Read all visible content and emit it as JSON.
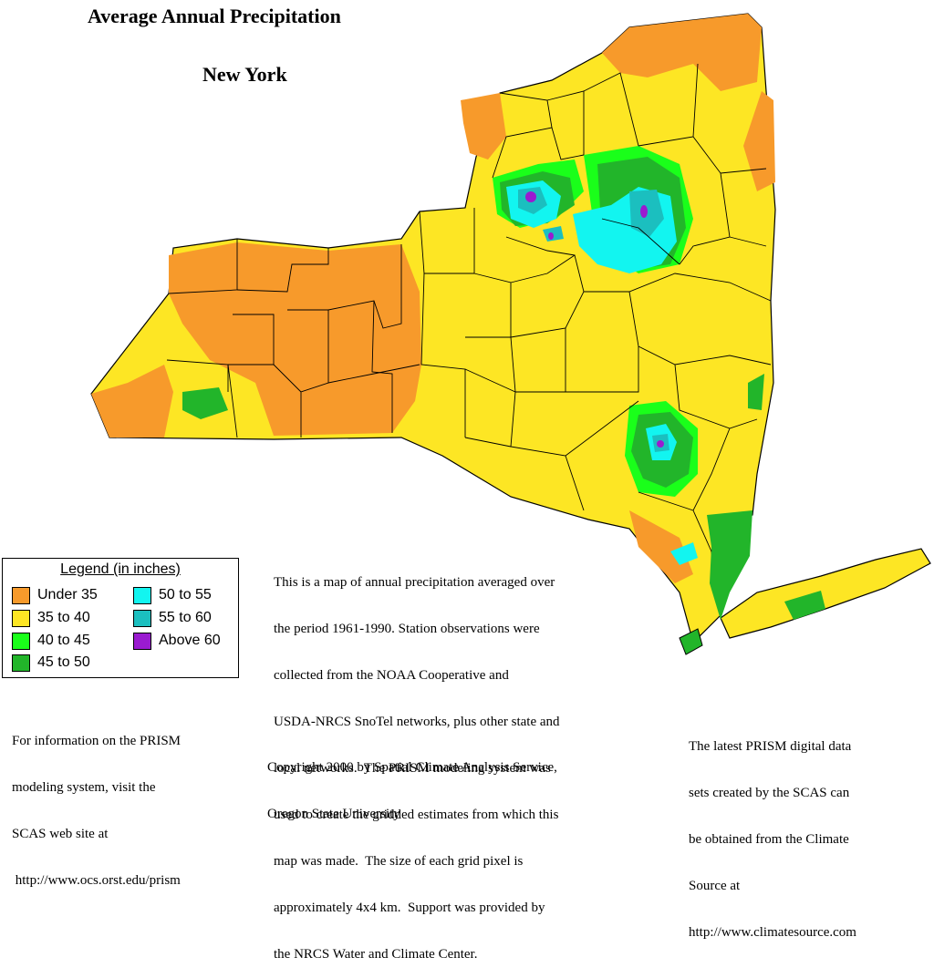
{
  "title": "Average Annual Precipitation",
  "subtitle": "New York",
  "legend": {
    "title": "Legend (in inches)",
    "items": [
      {
        "label": "Under 35",
        "color": "#f79a2b"
      },
      {
        "label": "35 to 40",
        "color": "#fde624"
      },
      {
        "label": "40 to 45",
        "color": "#1aff1a"
      },
      {
        "label": "45 to 50",
        "color": "#22b52a"
      },
      {
        "label": "50 to 55",
        "color": "#12f5f0"
      },
      {
        "label": "55 to 60",
        "color": "#1bbfbf"
      },
      {
        "label": "Above 60",
        "color": "#9a1bd0"
      }
    ]
  },
  "description_lines": [
    "This is a map of annual precipitation averaged over",
    "the period 1961-1990. Station observations were",
    "collected from the NOAA Cooperative and",
    "USDA-NRCS SnoTel networks, plus other state and",
    "local networks.  The PRISM modeling system was",
    "used to create the gridded estimates from which this",
    "map was made.  The size of each grid pixel is",
    "approximately 4x4 km.  Support was provided by",
    "the NRCS Water and Climate Center."
  ],
  "copyright_lines": [
    "Copyright 2000 by Spatial Climate Analysis Service,",
    "Oregon State University"
  ],
  "info_lines": [
    "For information on the PRISM",
    "modeling system, visit the",
    "SCAS web site at",
    " http://www.ocs.orst.edu/prism"
  ],
  "latest_lines": [
    "The latest PRISM digital data",
    "sets created by the SCAS can",
    "be obtained from the Climate",
    "Source at",
    "http://www.climatesource.com"
  ]
}
